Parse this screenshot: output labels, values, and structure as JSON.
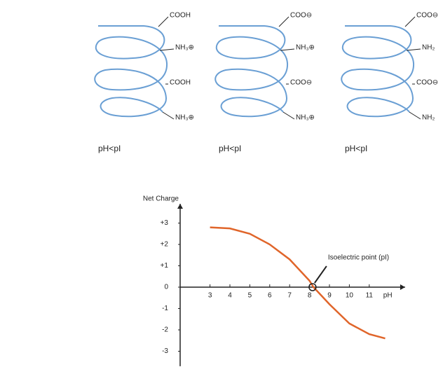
{
  "helices": [
    {
      "labels": [
        "COOH",
        "NH₃⊕",
        "COOH",
        "NH₃⊕"
      ],
      "caption": "pH<pI"
    },
    {
      "labels": [
        "COO⊖",
        "NH₃⊕",
        "COO⊖",
        "NH₃⊕"
      ],
      "caption": "pH<pI"
    },
    {
      "labels": [
        "COO⊖",
        "NH₂",
        "COO⊖",
        "NH₂"
      ],
      "caption": "pH<pI"
    }
  ],
  "chart_data": {
    "type": "line",
    "y_label": "Net Charge",
    "x_label": "pH",
    "x": [
      3,
      4,
      5,
      6,
      7,
      8,
      8.2,
      9,
      10,
      11,
      11.8
    ],
    "values": [
      2.8,
      2.75,
      2.5,
      2.0,
      1.3,
      0.3,
      0,
      -0.8,
      -1.7,
      -2.2,
      -2.4
    ],
    "color": "#e0652a",
    "xlim": [
      1.5,
      12.8
    ],
    "ylim": [
      -3.7,
      3.9
    ],
    "xticks": [
      3,
      4,
      5,
      6,
      7,
      8,
      9,
      10,
      11
    ],
    "yticks": [
      {
        "value": 3,
        "label": "+3"
      },
      {
        "value": 2,
        "label": "+2"
      },
      {
        "value": 1,
        "label": "+1"
      },
      0,
      -1,
      -2,
      -3
    ],
    "annotation": {
      "text": "Isoelectric point (pI)",
      "x": 8.15,
      "y": 0
    },
    "grid": false
  }
}
